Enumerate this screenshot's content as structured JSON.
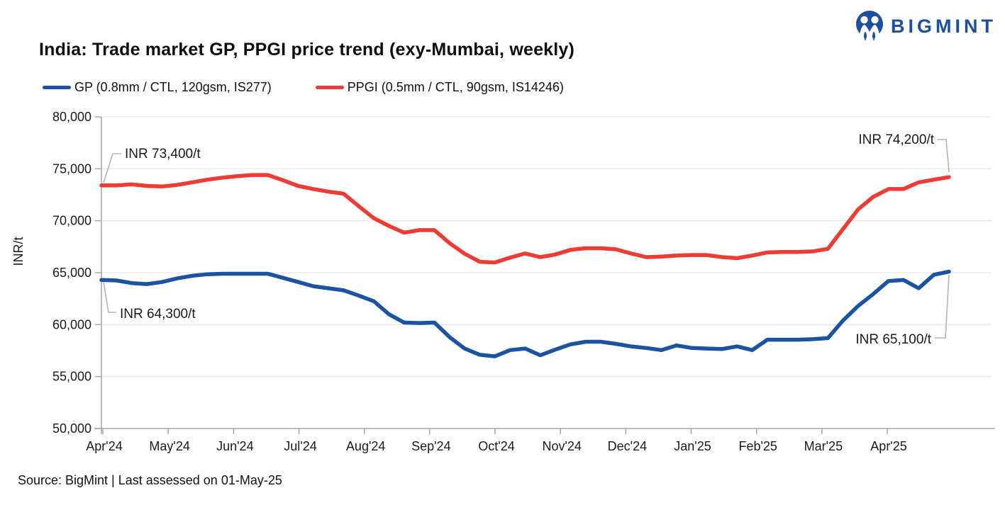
{
  "logo": {
    "text": "BIGMINT",
    "color": "#1b4fa0"
  },
  "title": "India: Trade market GP, PPGI price trend (exy-Mumbai, weekly)",
  "legend": {
    "gp": {
      "label": "GP (0.8mm / CTL, 120gsm, IS277)",
      "color": "#1a53a1"
    },
    "ppgi": {
      "label": "PPGI (0.5mm / CTL, 90gsm, IS14246)",
      "color": "#ee3b33"
    }
  },
  "footer": "Source: BigMint | Last assessed on 01-May-25",
  "chart_data": {
    "type": "line",
    "title": "India: Trade market GP, PPGI price trend (exy-Mumbai, weekly)",
    "frequency": "weekly",
    "ylabel": "INR/t",
    "ylim": [
      50000,
      80000
    ],
    "ytick_step": 5000,
    "ytick_labels": [
      "80,000",
      "75,000",
      "70,000",
      "65,000",
      "60,000",
      "55,000",
      "50,000"
    ],
    "x_tick_labels": [
      "Apr'24",
      "May'24",
      "Jun'24",
      "Jul'24",
      "Aug'24",
      "Sep'24",
      "Oct'24",
      "Nov'24",
      "Dec'24",
      "Jan'25",
      "Feb'25",
      "Mar'25",
      "Apr'25"
    ],
    "grid": "horizontal",
    "legend_position": "top",
    "series": [
      {
        "name": "GP (0.8mm / CTL, 120gsm, IS277)",
        "color": "#1a53a1",
        "start_label": "INR 64,300/t",
        "end_label": "INR 65,100/t",
        "values": [
          64300,
          64250,
          64000,
          63900,
          64100,
          64450,
          64700,
          64850,
          64900,
          64900,
          64900,
          64900,
          64500,
          64100,
          63700,
          63500,
          63300,
          62800,
          62250,
          61000,
          60200,
          60150,
          60200,
          58800,
          57700,
          57100,
          56950,
          57550,
          57700,
          57050,
          57600,
          58100,
          58350,
          58350,
          58150,
          57900,
          57750,
          57550,
          58000,
          57750,
          57700,
          57650,
          57900,
          57550,
          58550,
          58550,
          58550,
          58600,
          58700,
          60400,
          61800,
          62950,
          64200,
          64300,
          63500,
          64800,
          65100
        ]
      },
      {
        "name": "PPGI (0.5mm / CTL, 90gsm, IS14246)",
        "color": "#ee3b33",
        "start_label": "INR 73,400/t",
        "end_label": "INR 74,200/t",
        "values": [
          73400,
          73400,
          73500,
          73350,
          73300,
          73450,
          73700,
          73950,
          74150,
          74300,
          74400,
          74400,
          73900,
          73350,
          73050,
          72800,
          72600,
          71400,
          70250,
          69500,
          68850,
          69100,
          69100,
          67850,
          66830,
          66050,
          65980,
          66450,
          66850,
          66500,
          66750,
          67200,
          67350,
          67350,
          67250,
          66850,
          66500,
          66550,
          66650,
          66700,
          66700,
          66500,
          66400,
          66650,
          66950,
          67000,
          67000,
          67050,
          67300,
          69200,
          71100,
          72300,
          73050,
          73050,
          73700,
          73950,
          74200
        ]
      }
    ],
    "annotations": [
      {
        "text": "INR 73,400/t",
        "target": "ppgi-first-point"
      },
      {
        "text": "INR 64,300/t",
        "target": "gp-first-point"
      },
      {
        "text": "INR 74,200/t",
        "target": "ppgi-last-point"
      },
      {
        "text": "INR 65,100/t",
        "target": "gp-last-point"
      }
    ]
  }
}
